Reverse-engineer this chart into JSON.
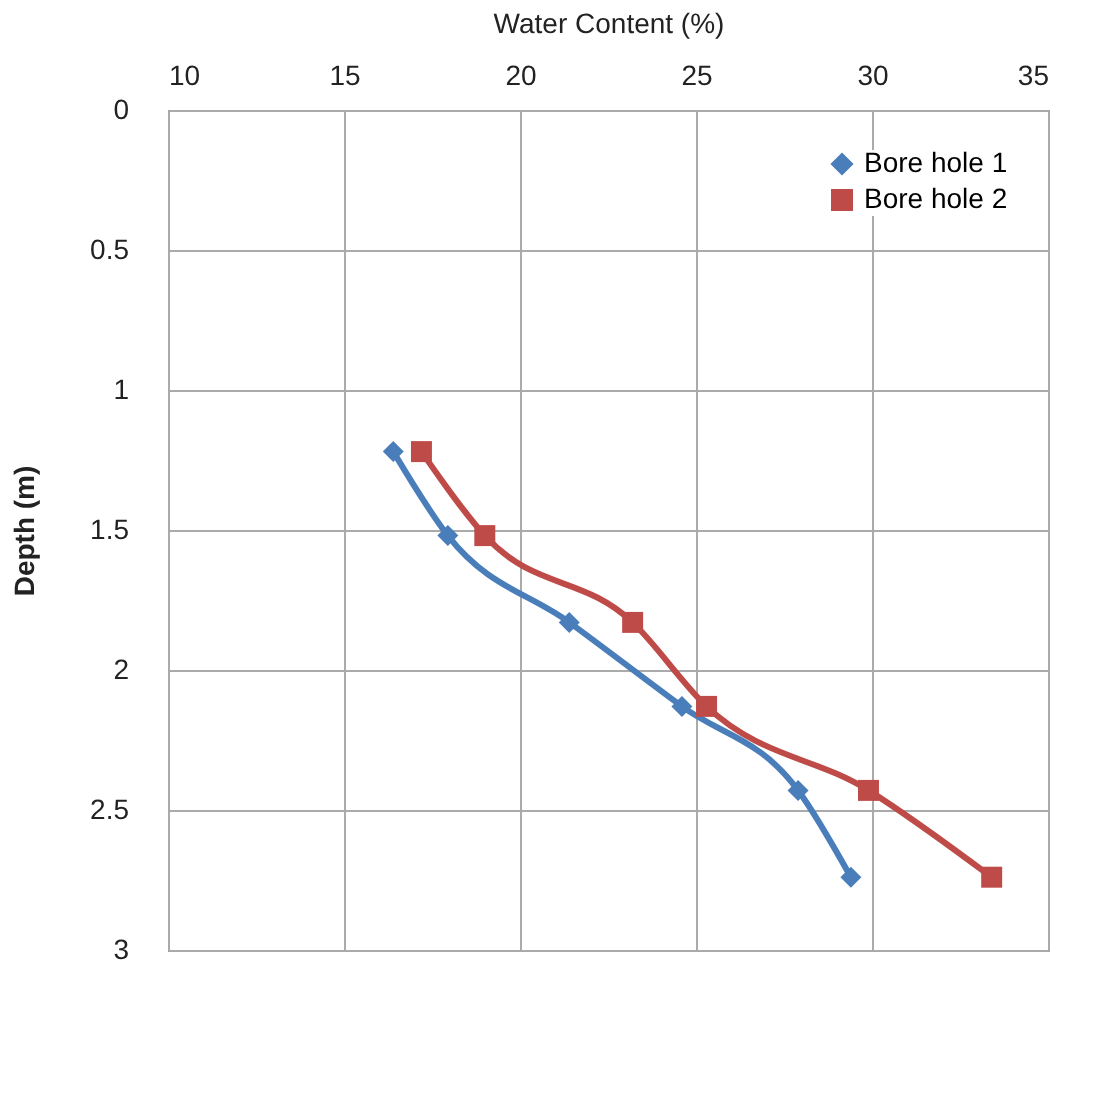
{
  "chart_data": {
    "type": "line",
    "xlabel": "Water Content (%)",
    "ylabel": "Depth (m)",
    "xlim": [
      10,
      35
    ],
    "xticks": [
      10,
      15,
      20,
      25,
      30,
      35
    ],
    "ylim": [
      3,
      0
    ],
    "yticks": [
      0,
      0.5,
      1,
      1.5,
      2,
      2.5,
      3
    ],
    "grid": true,
    "legend": "top right",
    "line_style": "solid",
    "series": [
      {
        "name": "Bore hole 1",
        "color": "#4a7ebb",
        "marker": "diamond",
        "x": [
          16.4,
          17.95,
          21.4,
          24.6,
          27.9,
          29.4
        ],
        "values": [
          1.22,
          1.52,
          1.83,
          2.13,
          2.43,
          2.74
        ]
      },
      {
        "name": "Bore hole 2",
        "color": "#be4b48",
        "marker": "square",
        "x": [
          17.2,
          19.0,
          23.2,
          25.3,
          29.9,
          33.4
        ],
        "values": [
          1.22,
          1.52,
          1.83,
          2.13,
          2.43,
          2.74
        ]
      }
    ]
  }
}
